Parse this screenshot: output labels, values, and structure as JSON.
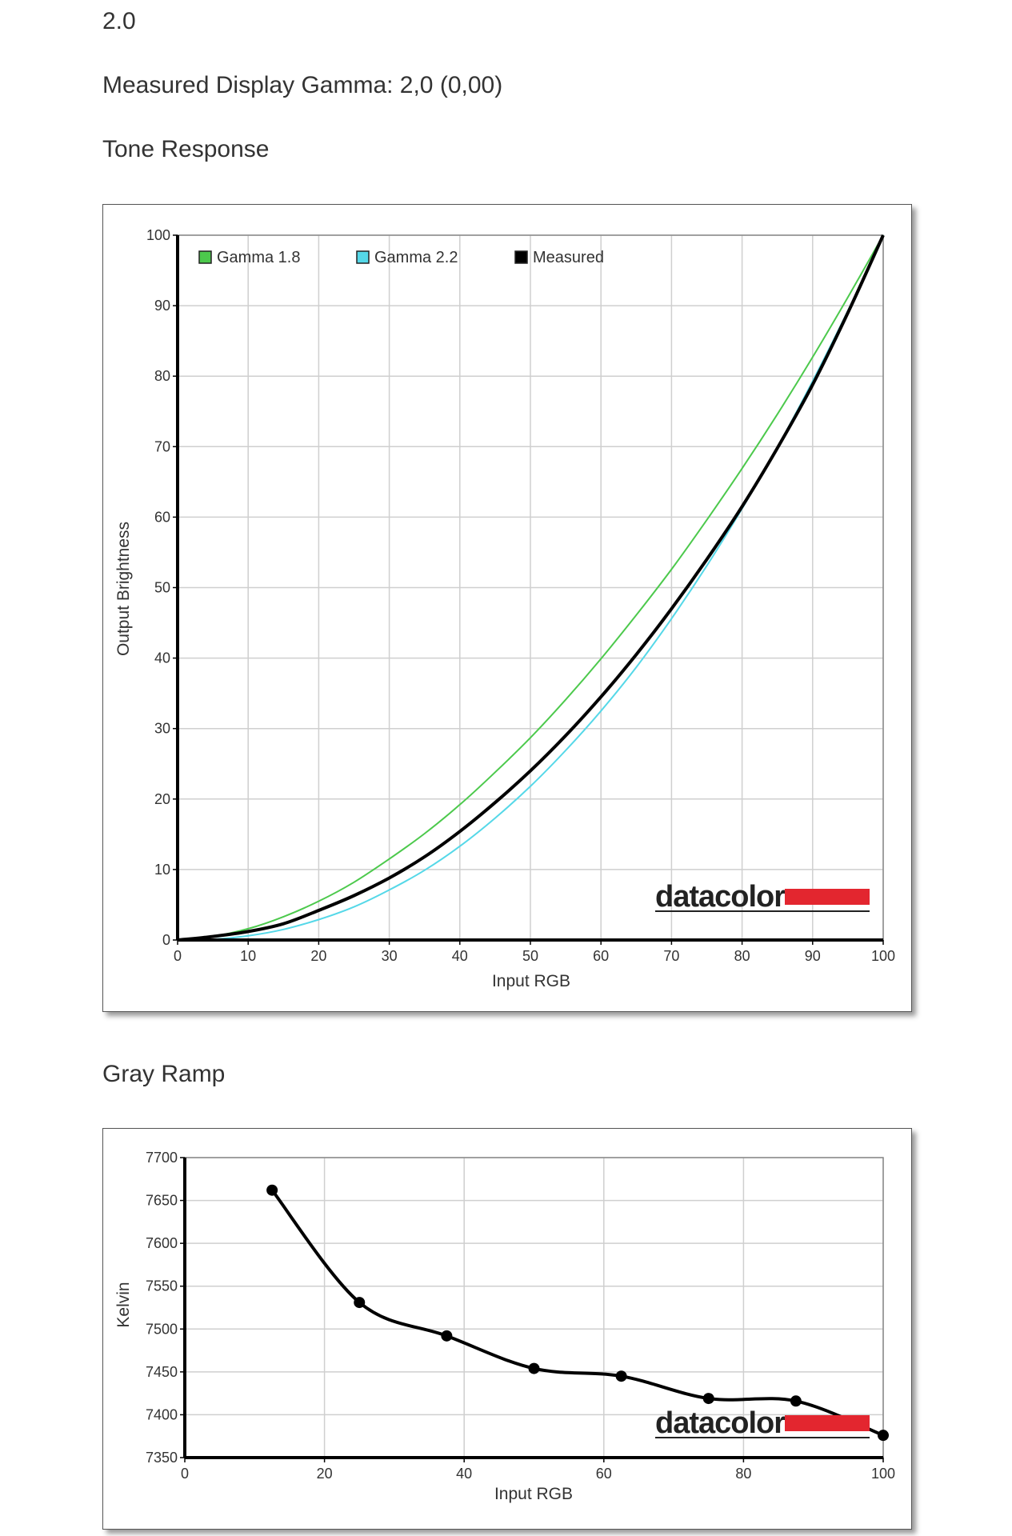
{
  "header": {
    "value": "2.0",
    "measured_gamma": "Measured Display Gamma: 2,0 (0,00)"
  },
  "colors": {
    "gamma18": "#4cc94c",
    "gamma22": "#55d8e8",
    "measured": "#000000",
    "brand_red": "#e3262f",
    "grid": "#cfcfcf"
  },
  "chart_data": [
    {
      "type": "line",
      "title": "Tone Response",
      "xlabel": "Input RGB",
      "ylabel": "Output Brightness",
      "xlim": [
        0,
        100
      ],
      "ylim": [
        0,
        100
      ],
      "xticks": [
        0,
        10,
        20,
        30,
        40,
        50,
        60,
        70,
        80,
        90,
        100
      ],
      "yticks": [
        0,
        10,
        20,
        30,
        40,
        50,
        60,
        70,
        80,
        90,
        100
      ],
      "grid": true,
      "legend_position": "top-left",
      "logo": "datacolor",
      "series": [
        {
          "name": "Gamma 1.8",
          "color": "#4cc94c",
          "x": [
            0,
            5,
            10,
            15,
            20,
            25,
            30,
            35,
            40,
            45,
            50,
            55,
            60,
            65,
            70,
            75,
            80,
            85,
            90,
            95,
            100
          ],
          "y": [
            0,
            0.5,
            1.6,
            3.3,
            5.5,
            8.2,
            11.5,
            15.1,
            19.2,
            23.8,
            28.7,
            34.1,
            39.9,
            46.1,
            52.6,
            59.6,
            66.9,
            74.6,
            82.7,
            91.2,
            100
          ]
        },
        {
          "name": "Gamma 2.2",
          "color": "#55d8e8",
          "x": [
            0,
            5,
            10,
            15,
            20,
            25,
            30,
            35,
            40,
            45,
            50,
            55,
            60,
            65,
            70,
            75,
            80,
            85,
            90,
            95,
            100
          ],
          "y": [
            0,
            0.1,
            0.6,
            1.5,
            2.9,
            4.7,
            7.1,
            9.9,
            13.3,
            17.3,
            21.8,
            26.9,
            32.5,
            38.7,
            45.6,
            53.1,
            61.2,
            69.9,
            79.3,
            89.3,
            100
          ]
        },
        {
          "name": "Measured",
          "color": "#000000",
          "x": [
            0,
            5,
            10,
            15,
            20,
            25,
            30,
            35,
            40,
            45,
            50,
            55,
            60,
            65,
            70,
            75,
            80,
            85,
            90,
            95,
            100
          ],
          "y": [
            0,
            0.5,
            1.2,
            2.3,
            4.2,
            6.3,
            8.8,
            11.8,
            15.4,
            19.5,
            24,
            29,
            34.5,
            40.5,
            47,
            54,
            61.5,
            69.8,
            78.8,
            89,
            100
          ]
        }
      ]
    },
    {
      "type": "line",
      "title": "Gray Ramp",
      "xlabel": "Input RGB",
      "ylabel": "Kelvin",
      "xlim": [
        0,
        100
      ],
      "ylim": [
        7350,
        7700
      ],
      "xticks": [
        0,
        20,
        40,
        60,
        80,
        100
      ],
      "yticks": [
        7350,
        7400,
        7450,
        7500,
        7550,
        7600,
        7650,
        7700
      ],
      "grid": true,
      "logo": "datacolor",
      "series": [
        {
          "color": "#000000",
          "x": [
            12.5,
            25,
            37.5,
            50,
            62.5,
            75,
            87.5,
            100
          ],
          "y": [
            7662,
            7531,
            7492,
            7454,
            7445,
            7419,
            7416,
            7376
          ]
        }
      ]
    }
  ]
}
